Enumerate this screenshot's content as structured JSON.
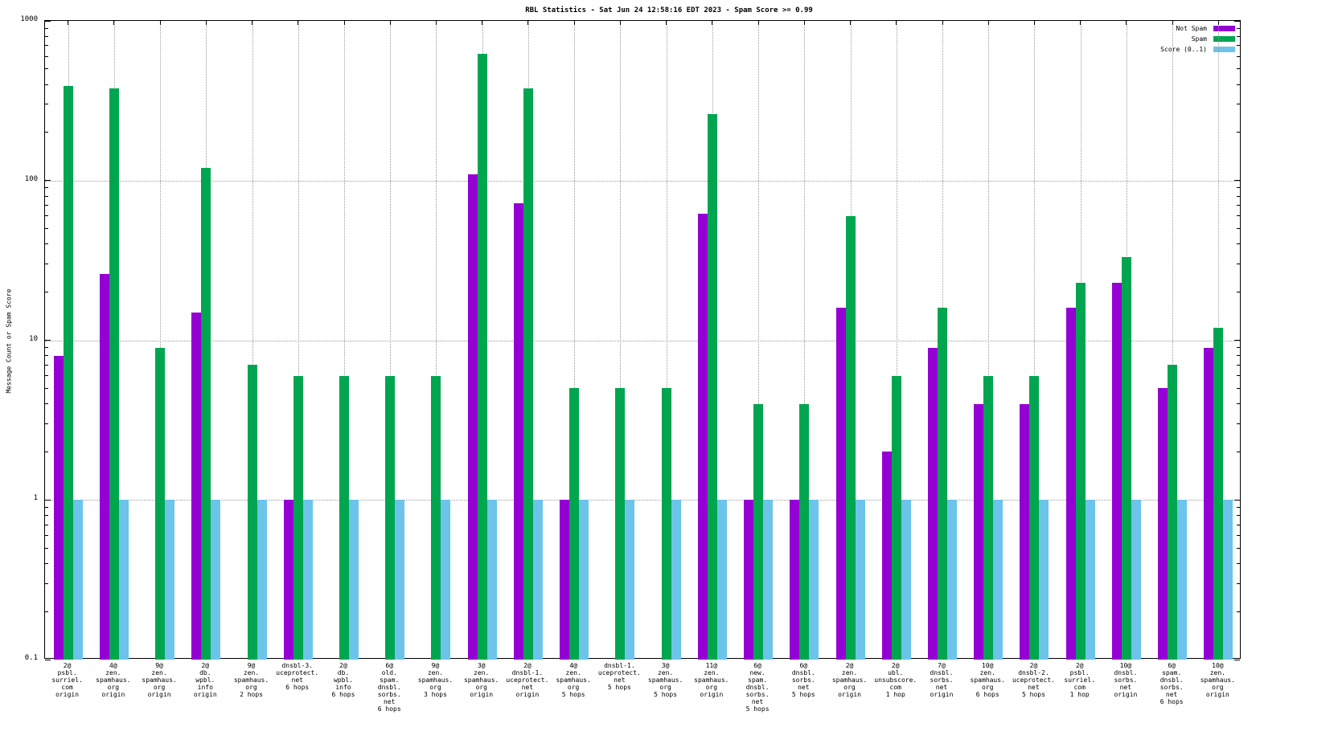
{
  "title": "RBL Statistics - Sat Jun 24 12:58:16 EDT 2023 - Spam Score >= 0.99",
  "ylabel": "Message Count or Spam Score",
  "chart_data": {
    "type": "bar",
    "yscale": "log",
    "ylim": [
      0.1,
      1000
    ],
    "ytick_labels": [
      "0.1",
      "1",
      "10",
      "100",
      "1000"
    ],
    "ytick_values": [
      0.1,
      1,
      10,
      100,
      1000
    ],
    "grid": true,
    "legend_position": "top-right",
    "categories": [
      [
        "2@",
        "psbl.",
        "surriel.",
        "com",
        "origin"
      ],
      [
        "4@",
        "zen.",
        "spamhaus.",
        "org",
        "origin"
      ],
      [
        "9@",
        "zen.",
        "spamhaus.",
        "org",
        "origin"
      ],
      [
        "2@",
        "db.",
        "wpbl.",
        "info",
        "origin"
      ],
      [
        "9@",
        "zen.",
        "spamhaus.",
        "org",
        "2 hops"
      ],
      [
        "dnsbl-3.",
        "uceprotect.",
        "net",
        "6 hops"
      ],
      [
        "2@",
        "db.",
        "wpbl.",
        "info",
        "6 hops"
      ],
      [
        "6@",
        "old.",
        "spam.",
        "dnsbl.",
        "sorbs.",
        "net",
        "6 hops"
      ],
      [
        "9@",
        "zen.",
        "spamhaus.",
        "org",
        "3 hops"
      ],
      [
        "3@",
        "zen.",
        "spamhaus.",
        "org",
        "origin"
      ],
      [
        "2@",
        "dnsbl-1.",
        "uceprotect.",
        "net",
        "origin"
      ],
      [
        "4@",
        "zen.",
        "spamhaus.",
        "org",
        "5 hops"
      ],
      [
        "dnsbl-1.",
        "uceprotect.",
        "net",
        "5 hops"
      ],
      [
        "3@",
        "zen.",
        "spamhaus.",
        "org",
        "5 hops"
      ],
      [
        "11@",
        "zen.",
        "spamhaus.",
        "org",
        "origin"
      ],
      [
        "6@",
        "new.",
        "spam.",
        "dnsbl.",
        "sorbs.",
        "net",
        "5 hops"
      ],
      [
        "6@",
        "dnsbl.",
        "sorbs.",
        "net",
        "5 hops"
      ],
      [
        "2@",
        "zen.",
        "spamhaus.",
        "org",
        "origin"
      ],
      [
        "2@",
        "ubl.",
        "unsubscore.",
        "com",
        "1 hop"
      ],
      [
        "7@",
        "dnsbl.",
        "sorbs.",
        "net",
        "origin"
      ],
      [
        "10@",
        "zen.",
        "spamhaus.",
        "org",
        "6 hops"
      ],
      [
        "2@",
        "dnsbl-2.",
        "uceprotect.",
        "net",
        "5 hops"
      ],
      [
        "2@",
        "psbl.",
        "surriel.",
        "com",
        "1 hop"
      ],
      [
        "10@",
        "dnsbl.",
        "sorbs.",
        "net",
        "origin"
      ],
      [
        "6@",
        "spam.",
        "dnsbl.",
        "sorbs.",
        "net",
        "6 hops"
      ],
      [
        "10@",
        "zen.",
        "spamhaus.",
        "org",
        "origin"
      ]
    ],
    "series": [
      {
        "name": "Not Spam",
        "color": "#9400d3",
        "values": [
          8,
          26,
          null,
          15,
          null,
          1,
          null,
          null,
          null,
          110,
          72,
          1,
          null,
          null,
          62,
          1,
          1,
          16,
          2,
          9,
          4,
          4,
          16,
          23,
          5,
          9
        ]
      },
      {
        "name": "Spam",
        "color": "#00a550",
        "values": [
          390,
          380,
          9,
          120,
          7,
          6,
          6,
          6,
          6,
          620,
          380,
          5,
          5,
          5,
          260,
          4,
          4,
          60,
          6,
          16,
          6,
          6,
          23,
          33,
          7,
          12
        ]
      },
      {
        "name": "Score (0..1)",
        "color": "#6cc4ea",
        "values": [
          1,
          1,
          1,
          1,
          1,
          1,
          1,
          1,
          1,
          1,
          1,
          1,
          1,
          1,
          1,
          1,
          1,
          1,
          1,
          1,
          1,
          1,
          1,
          1,
          1,
          1
        ]
      }
    ]
  }
}
